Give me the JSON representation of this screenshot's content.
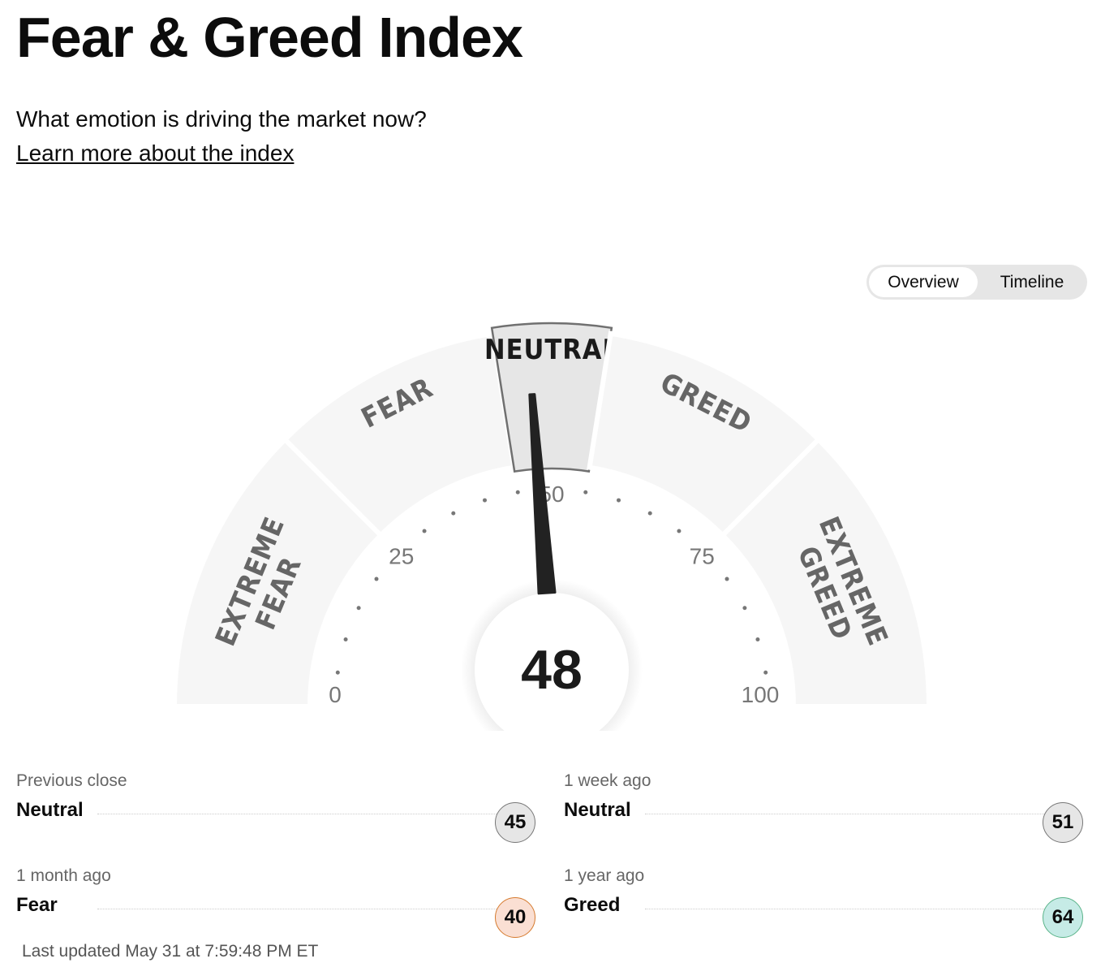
{
  "title": "Fear & Greed Index",
  "subtitle": "What emotion is driving the market now?",
  "learn_more": "Learn more about the index",
  "toggle": {
    "options": [
      "Overview",
      "Timeline"
    ],
    "selected": "Overview"
  },
  "gauge": {
    "value": 48,
    "min": 0,
    "max": 100,
    "tick_labels": [
      "0",
      "25",
      "50",
      "75",
      "100"
    ],
    "segments": [
      {
        "label": "EXTREME FEAR",
        "from": 0,
        "to": 25
      },
      {
        "label": "FEAR",
        "from": 25,
        "to": 45
      },
      {
        "label": "NEUTRAL",
        "from": 45,
        "to": 55,
        "active": true
      },
      {
        "label": "GREED",
        "from": 55,
        "to": 75
      },
      {
        "label": "EXTREME GREED",
        "from": 75,
        "to": 100
      }
    ],
    "value_label": "48"
  },
  "stats": [
    {
      "label": "Previous close",
      "rating": "Neutral",
      "value": "45",
      "color": "#e6e6e6",
      "border": "#777777"
    },
    {
      "label": "1 week ago",
      "rating": "Neutral",
      "value": "51",
      "color": "#e6e6e6",
      "border": "#777777"
    },
    {
      "label": "1 month ago",
      "rating": "Fear",
      "value": "40",
      "color": "#fadfd3",
      "border": "#d67b2f"
    },
    {
      "label": "1 year ago",
      "rating": "Greed",
      "value": "64",
      "color": "#c6ebe6",
      "border": "#5bb48a"
    }
  ],
  "last_updated": "Last updated May 31 at 7:59:48 PM ET"
}
